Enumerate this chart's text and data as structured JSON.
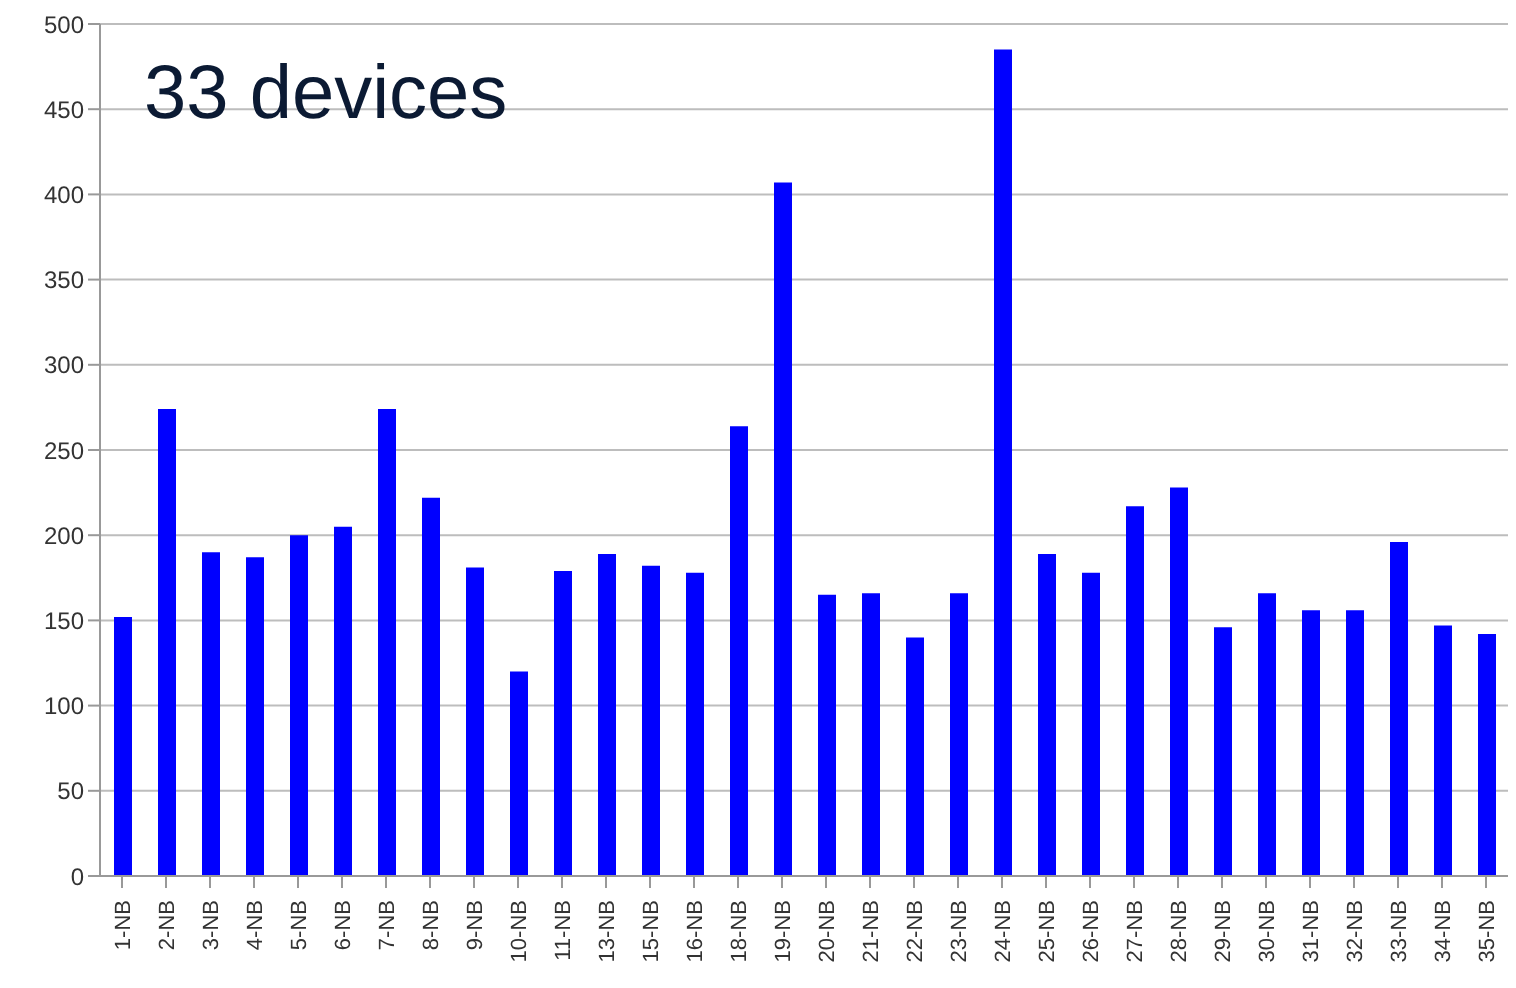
{
  "chart_data": {
    "type": "bar",
    "title": "33 devices",
    "categories": [
      "1-NB",
      "2-NB",
      "3-NB",
      "4-NB",
      "5-NB",
      "6-NB",
      "7-NB",
      "8-NB",
      "9-NB",
      "10-NB",
      "11-NB",
      "13-NB",
      "15-NB",
      "16-NB",
      "18-NB",
      "19-NB",
      "20-NB",
      "21-NB",
      "22-NB",
      "23-NB",
      "24-NB",
      "25-NB",
      "26-NB",
      "27-NB",
      "28-NB",
      "29-NB",
      "30-NB",
      "31-NB",
      "32-NB",
      "33-NB",
      "34-NB",
      "35-NB"
    ],
    "values": [
      152,
      274,
      190,
      187,
      200,
      205,
      274,
      222,
      181,
      120,
      179,
      189,
      182,
      178,
      264,
      407,
      165,
      166,
      140,
      166,
      485,
      189,
      178,
      217,
      228,
      146,
      166,
      156,
      156,
      196,
      147,
      142
    ],
    "color": "#0000ff",
    "ylim": [
      0,
      500
    ],
    "yticks": [
      0,
      50,
      100,
      150,
      200,
      250,
      300,
      350,
      400,
      450,
      500
    ],
    "grid": "y"
  }
}
